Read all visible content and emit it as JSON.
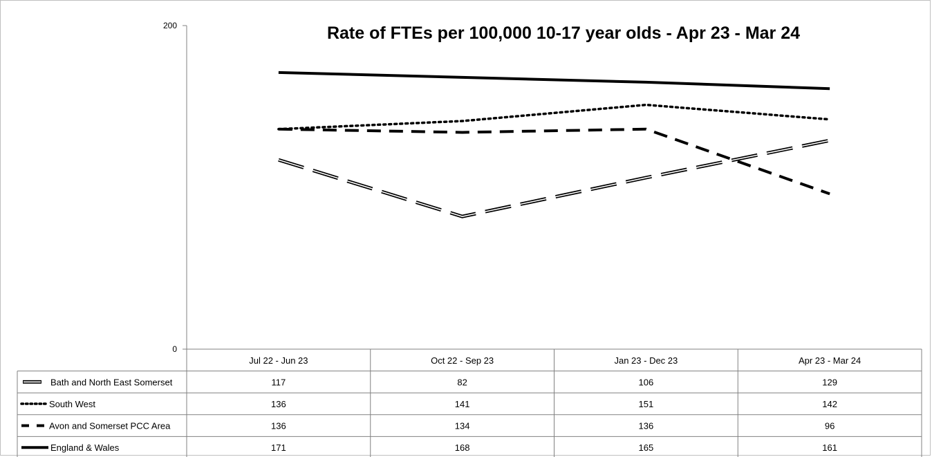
{
  "chart_data": {
    "type": "line",
    "title": "Rate of FTEs per 100,000 10-17 year olds - Apr 23 - Mar 24",
    "xlabel": "",
    "ylabel": "",
    "ylim": [
      0,
      200
    ],
    "yticks": [
      "0",
      "200"
    ],
    "grid": false,
    "legend": "data-table-left",
    "categories": [
      "Jul 22 - Jun 23",
      "Oct 22 - Sep 23",
      "Jan 23 - Dec 23",
      "Apr 23 - Mar 24"
    ],
    "series": [
      {
        "name": "Bath and North East Somerset",
        "values": [
          117,
          82,
          106,
          129
        ],
        "style": "double-dash",
        "color": "#000000"
      },
      {
        "name": "South West",
        "values": [
          136,
          141,
          151,
          142
        ],
        "style": "dotted",
        "color": "#000000"
      },
      {
        "name": "Avon and Somerset PCC Area",
        "values": [
          136,
          134,
          136,
          96
        ],
        "style": "dashed",
        "color": "#000000"
      },
      {
        "name": "England & Wales",
        "values": [
          171,
          168,
          165,
          161
        ],
        "style": "solid",
        "color": "#000000"
      }
    ]
  }
}
